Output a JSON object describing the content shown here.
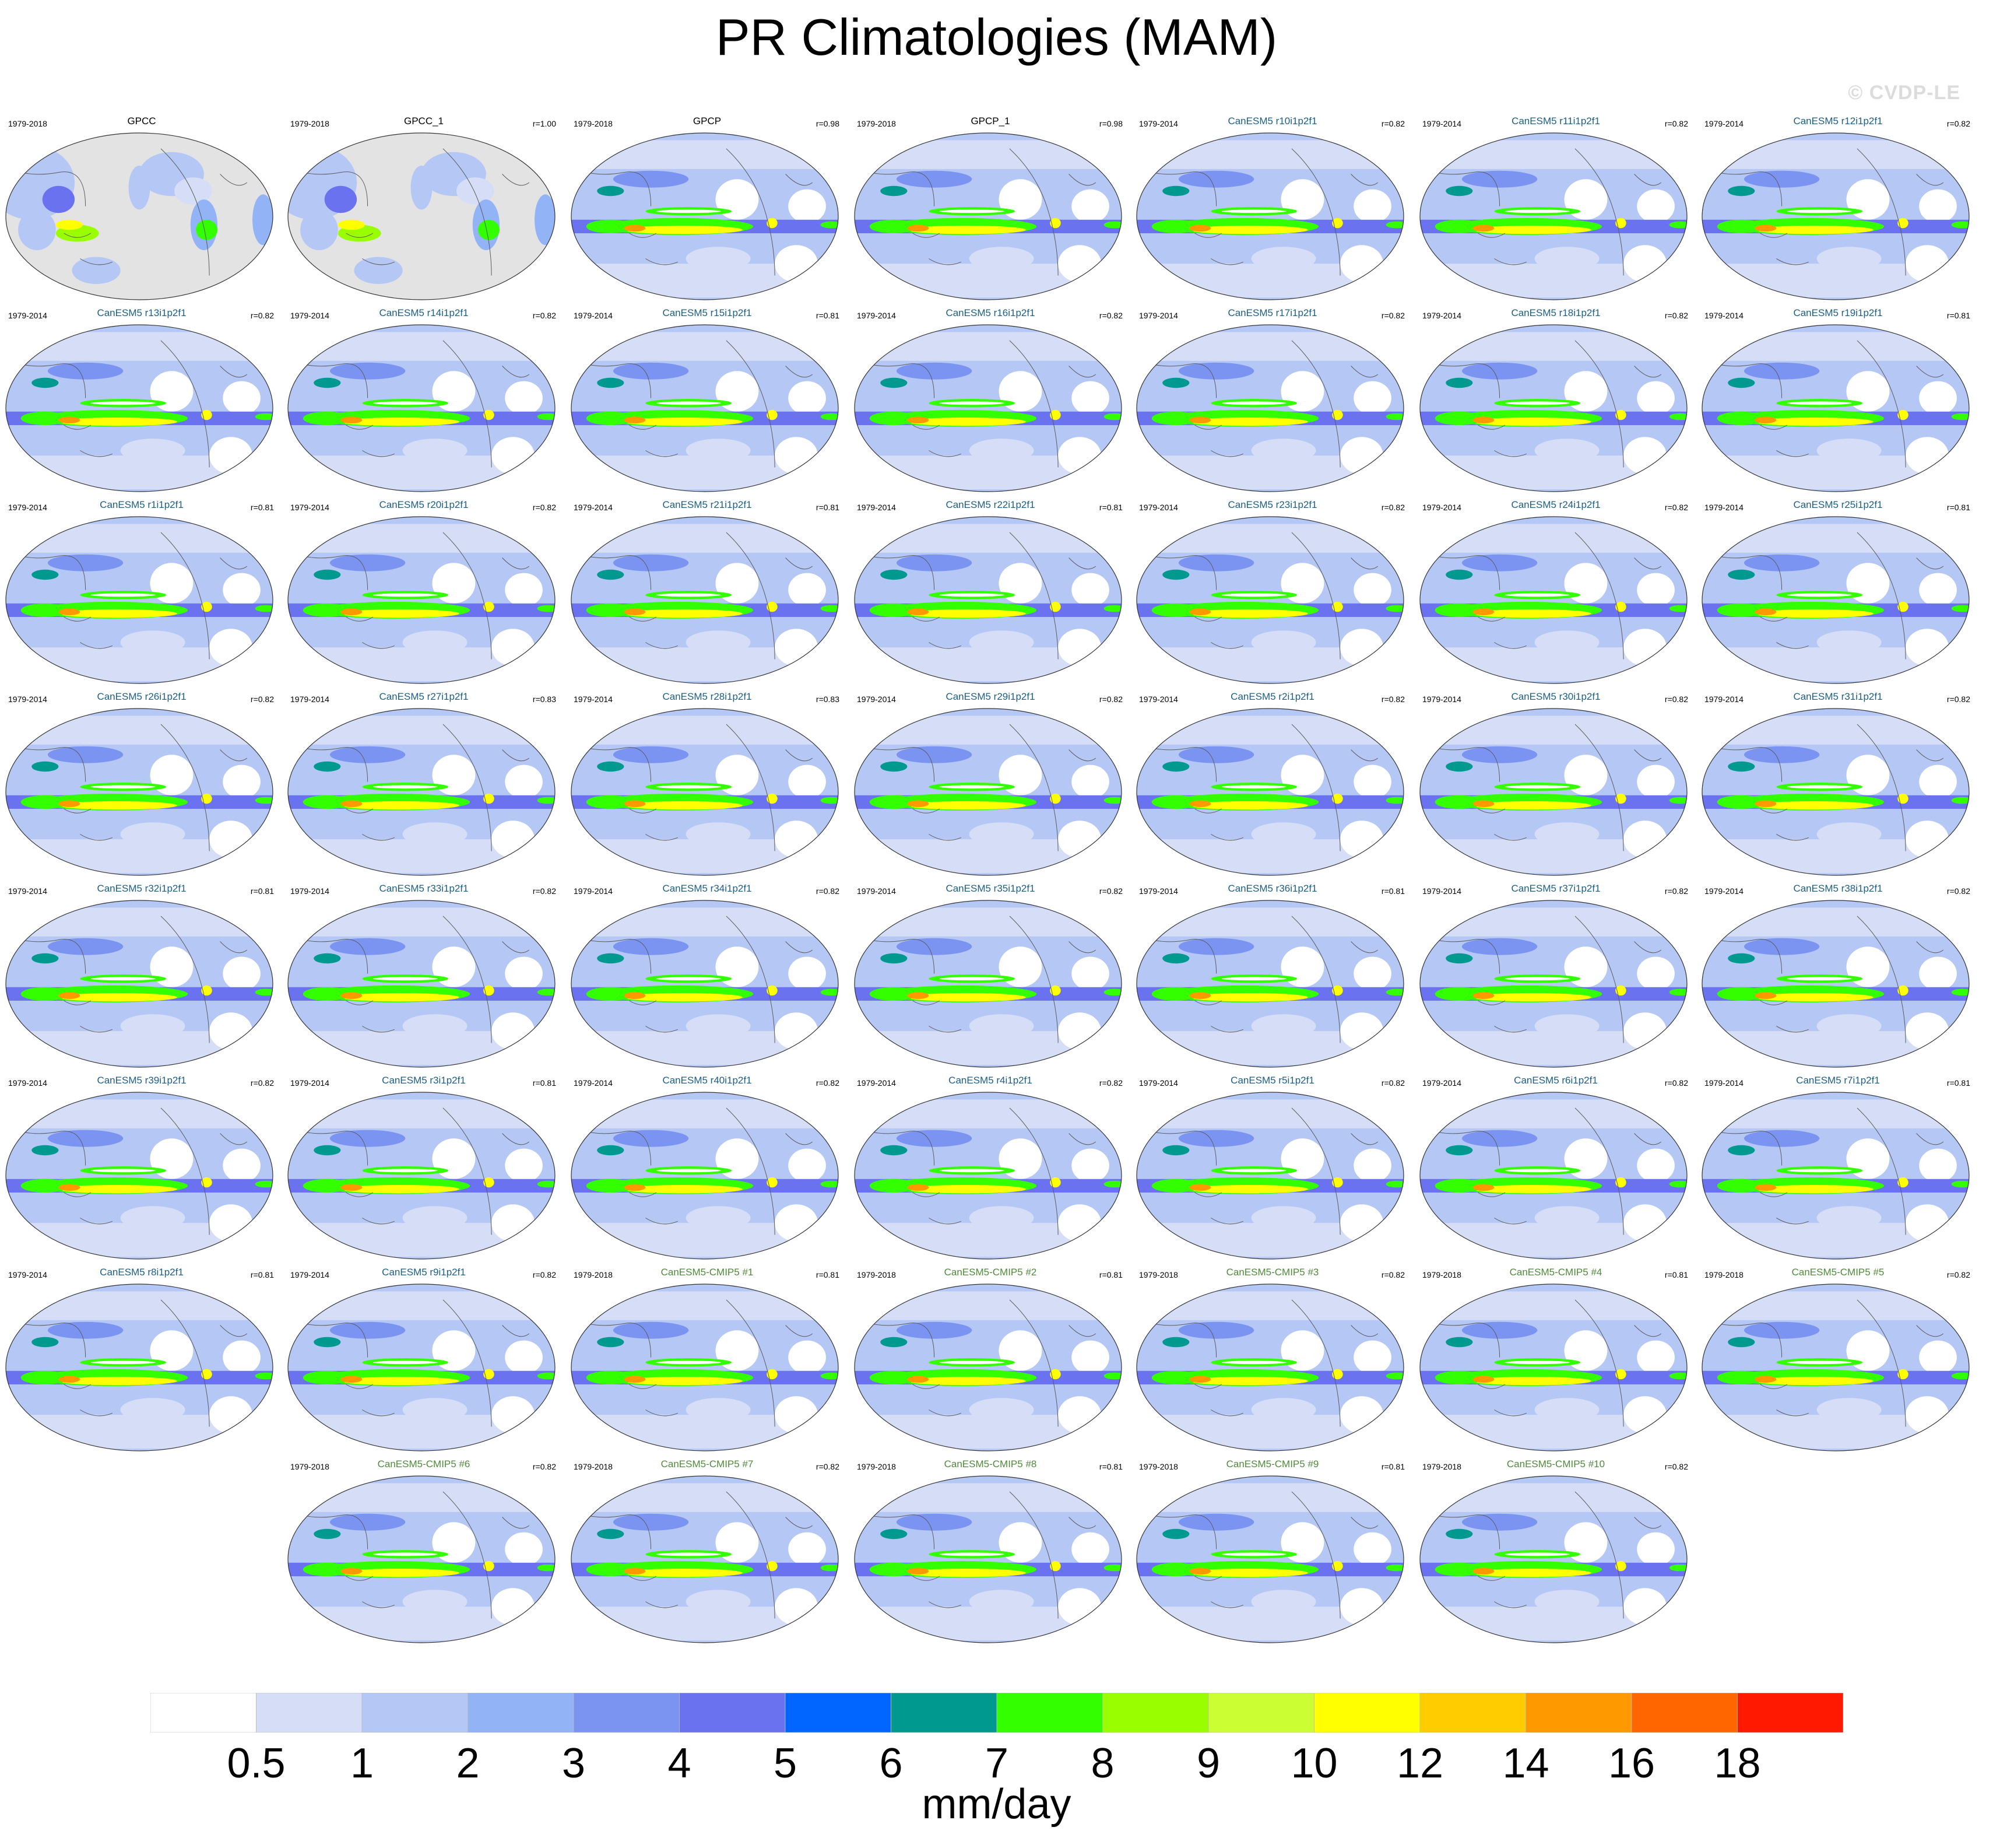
{
  "title": "PR Climatologies (MAM)",
  "watermark": "© CVDP-LE",
  "colors": {
    "obs_title": "#000000",
    "member_title": "#1b5e86",
    "cmip5_title": "#4f8a3a"
  },
  "chart_data": {
    "type": "heatmap",
    "title": "PR Climatologies (MAM)",
    "colorbar": {
      "units": "mm/day",
      "levels": [
        "0.5",
        "1",
        "2",
        "3",
        "4",
        "5",
        "6",
        "7",
        "8",
        "9",
        "10",
        "12",
        "14",
        "16",
        "18"
      ],
      "colors": [
        "#ffffff",
        "#d6def7",
        "#b5c8f5",
        "#93b3f7",
        "#7b94f2",
        "#6a72f0",
        "#0066ff",
        "#00998f",
        "#33ff00",
        "#99ff00",
        "#ccff33",
        "#ffff00",
        "#ffcc00",
        "#ff9900",
        "#ff6600",
        "#ff1900"
      ]
    },
    "panels": [
      {
        "title": "GPCC",
        "period": "1979-2018",
        "r": "",
        "group": "obs",
        "land_only": true
      },
      {
        "title": "GPCC_1",
        "period": "1979-2018",
        "r": "r=1.00",
        "group": "obs",
        "land_only": true
      },
      {
        "title": "GPCP",
        "period": "1979-2018",
        "r": "r=0.98",
        "group": "obs",
        "land_only": false
      },
      {
        "title": "GPCP_1",
        "period": "1979-2018",
        "r": "r=0.98",
        "group": "obs",
        "land_only": false
      },
      {
        "title": "CanESM5 r10i1p2f1",
        "period": "1979-2014",
        "r": "r=0.82",
        "group": "member",
        "land_only": false
      },
      {
        "title": "CanESM5 r11i1p2f1",
        "period": "1979-2014",
        "r": "r=0.82",
        "group": "member",
        "land_only": false
      },
      {
        "title": "CanESM5 r12i1p2f1",
        "period": "1979-2014",
        "r": "r=0.82",
        "group": "member",
        "land_only": false
      },
      {
        "title": "CanESM5 r13i1p2f1",
        "period": "1979-2014",
        "r": "r=0.82",
        "group": "member",
        "land_only": false
      },
      {
        "title": "CanESM5 r14i1p2f1",
        "period": "1979-2014",
        "r": "r=0.82",
        "group": "member",
        "land_only": false
      },
      {
        "title": "CanESM5 r15i1p2f1",
        "period": "1979-2014",
        "r": "r=0.81",
        "group": "member",
        "land_only": false
      },
      {
        "title": "CanESM5 r16i1p2f1",
        "period": "1979-2014",
        "r": "r=0.82",
        "group": "member",
        "land_only": false
      },
      {
        "title": "CanESM5 r17i1p2f1",
        "period": "1979-2014",
        "r": "r=0.82",
        "group": "member",
        "land_only": false
      },
      {
        "title": "CanESM5 r18i1p2f1",
        "period": "1979-2014",
        "r": "r=0.82",
        "group": "member",
        "land_only": false
      },
      {
        "title": "CanESM5 r19i1p2f1",
        "period": "1979-2014",
        "r": "r=0.81",
        "group": "member",
        "land_only": false
      },
      {
        "title": "CanESM5 r1i1p2f1",
        "period": "1979-2014",
        "r": "r=0.81",
        "group": "member",
        "land_only": false
      },
      {
        "title": "CanESM5 r20i1p2f1",
        "period": "1979-2014",
        "r": "r=0.82",
        "group": "member",
        "land_only": false
      },
      {
        "title": "CanESM5 r21i1p2f1",
        "period": "1979-2014",
        "r": "r=0.81",
        "group": "member",
        "land_only": false
      },
      {
        "title": "CanESM5 r22i1p2f1",
        "period": "1979-2014",
        "r": "r=0.81",
        "group": "member",
        "land_only": false
      },
      {
        "title": "CanESM5 r23i1p2f1",
        "period": "1979-2014",
        "r": "r=0.82",
        "group": "member",
        "land_only": false
      },
      {
        "title": "CanESM5 r24i1p2f1",
        "period": "1979-2014",
        "r": "r=0.82",
        "group": "member",
        "land_only": false
      },
      {
        "title": "CanESM5 r25i1p2f1",
        "period": "1979-2014",
        "r": "r=0.81",
        "group": "member",
        "land_only": false
      },
      {
        "title": "CanESM5 r26i1p2f1",
        "period": "1979-2014",
        "r": "r=0.82",
        "group": "member",
        "land_only": false
      },
      {
        "title": "CanESM5 r27i1p2f1",
        "period": "1979-2014",
        "r": "r=0.83",
        "group": "member",
        "land_only": false
      },
      {
        "title": "CanESM5 r28i1p2f1",
        "period": "1979-2014",
        "r": "r=0.83",
        "group": "member",
        "land_only": false
      },
      {
        "title": "CanESM5 r29i1p2f1",
        "period": "1979-2014",
        "r": "r=0.82",
        "group": "member",
        "land_only": false
      },
      {
        "title": "CanESM5 r2i1p2f1",
        "period": "1979-2014",
        "r": "r=0.82",
        "group": "member",
        "land_only": false
      },
      {
        "title": "CanESM5 r30i1p2f1",
        "period": "1979-2014",
        "r": "r=0.82",
        "group": "member",
        "land_only": false
      },
      {
        "title": "CanESM5 r31i1p2f1",
        "period": "1979-2014",
        "r": "r=0.82",
        "group": "member",
        "land_only": false
      },
      {
        "title": "CanESM5 r32i1p2f1",
        "period": "1979-2014",
        "r": "r=0.81",
        "group": "member",
        "land_only": false
      },
      {
        "title": "CanESM5 r33i1p2f1",
        "period": "1979-2014",
        "r": "r=0.82",
        "group": "member",
        "land_only": false
      },
      {
        "title": "CanESM5 r34i1p2f1",
        "period": "1979-2014",
        "r": "r=0.82",
        "group": "member",
        "land_only": false
      },
      {
        "title": "CanESM5 r35i1p2f1",
        "period": "1979-2014",
        "r": "r=0.82",
        "group": "member",
        "land_only": false
      },
      {
        "title": "CanESM5 r36i1p2f1",
        "period": "1979-2014",
        "r": "r=0.81",
        "group": "member",
        "land_only": false
      },
      {
        "title": "CanESM5 r37i1p2f1",
        "period": "1979-2014",
        "r": "r=0.82",
        "group": "member",
        "land_only": false
      },
      {
        "title": "CanESM5 r38i1p2f1",
        "period": "1979-2014",
        "r": "r=0.82",
        "group": "member",
        "land_only": false
      },
      {
        "title": "CanESM5 r39i1p2f1",
        "period": "1979-2014",
        "r": "r=0.82",
        "group": "member",
        "land_only": false
      },
      {
        "title": "CanESM5 r3i1p2f1",
        "period": "1979-2014",
        "r": "r=0.81",
        "group": "member",
        "land_only": false
      },
      {
        "title": "CanESM5 r40i1p2f1",
        "period": "1979-2014",
        "r": "r=0.82",
        "group": "member",
        "land_only": false
      },
      {
        "title": "CanESM5 r4i1p2f1",
        "period": "1979-2014",
        "r": "r=0.82",
        "group": "member",
        "land_only": false
      },
      {
        "title": "CanESM5 r5i1p2f1",
        "period": "1979-2014",
        "r": "r=0.82",
        "group": "member",
        "land_only": false
      },
      {
        "title": "CanESM5 r6i1p2f1",
        "period": "1979-2014",
        "r": "r=0.82",
        "group": "member",
        "land_only": false
      },
      {
        "title": "CanESM5 r7i1p2f1",
        "period": "1979-2014",
        "r": "r=0.81",
        "group": "member",
        "land_only": false
      },
      {
        "title": "CanESM5 r8i1p2f1",
        "period": "1979-2014",
        "r": "r=0.81",
        "group": "member",
        "land_only": false
      },
      {
        "title": "CanESM5 r9i1p2f1",
        "period": "1979-2014",
        "r": "r=0.82",
        "group": "member",
        "land_only": false
      },
      {
        "title": "CanESM5-CMIP5 #1",
        "period": "1979-2018",
        "r": "r=0.81",
        "group": "cmip5",
        "land_only": false
      },
      {
        "title": "CanESM5-CMIP5 #2",
        "period": "1979-2018",
        "r": "r=0.81",
        "group": "cmip5",
        "land_only": false
      },
      {
        "title": "CanESM5-CMIP5 #3",
        "period": "1979-2018",
        "r": "r=0.82",
        "group": "cmip5",
        "land_only": false
      },
      {
        "title": "CanESM5-CMIP5 #4",
        "period": "1979-2018",
        "r": "r=0.81",
        "group": "cmip5",
        "land_only": false
      },
      {
        "title": "CanESM5-CMIP5 #5",
        "period": "1979-2018",
        "r": "r=0.82",
        "group": "cmip5",
        "land_only": false
      },
      {
        "title": "CanESM5-CMIP5 #6",
        "period": "1979-2018",
        "r": "r=0.82",
        "group": "cmip5",
        "land_only": false
      },
      {
        "title": "CanESM5-CMIP5 #7",
        "period": "1979-2018",
        "r": "r=0.82",
        "group": "cmip5",
        "land_only": false
      },
      {
        "title": "CanESM5-CMIP5 #8",
        "period": "1979-2018",
        "r": "r=0.81",
        "group": "cmip5",
        "land_only": false
      },
      {
        "title": "CanESM5-CMIP5 #9",
        "period": "1979-2018",
        "r": "r=0.81",
        "group": "cmip5",
        "land_only": false
      },
      {
        "title": "CanESM5-CMIP5 #10",
        "period": "1979-2018",
        "r": "r=0.82",
        "group": "cmip5",
        "land_only": false
      }
    ]
  }
}
